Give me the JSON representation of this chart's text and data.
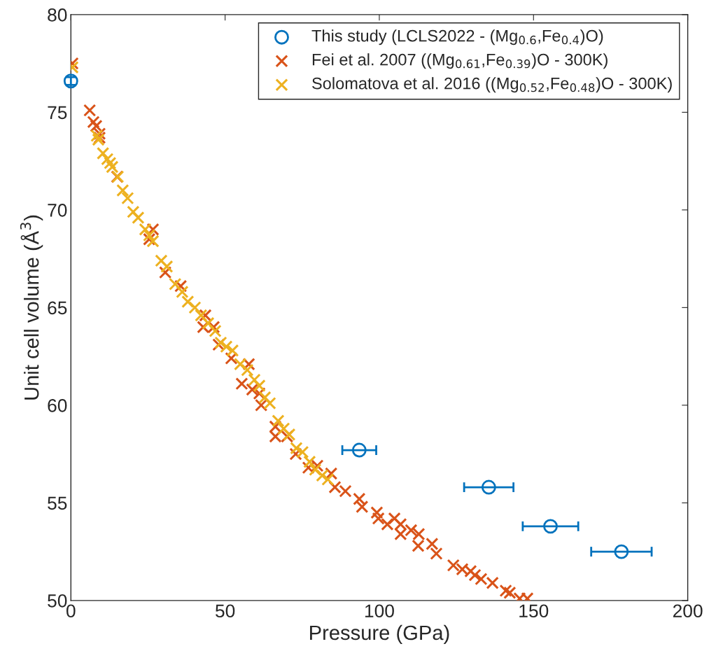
{
  "chart_data": {
    "type": "scatter",
    "xlabel": "Pressure (GPa)",
    "ylabel": "Unit cell volume (Å$^{3}$)",
    "xlim": [
      0,
      200
    ],
    "ylim": [
      50,
      80
    ],
    "xticks": [
      0,
      50,
      100,
      150,
      200
    ],
    "yticks": [
      50,
      55,
      60,
      65,
      70,
      75,
      80
    ],
    "grid": false,
    "legend": "top right",
    "series": [
      {
        "name": "This study (LCLS2022 - (Mg$_{0.6}$,Fe$_{0.4}$)O)",
        "color": "#0072bd",
        "marker": "circle",
        "x": [
          0,
          93.5,
          135.5,
          155.5,
          178.5
        ],
        "values": [
          76.6,
          57.7,
          55.8,
          53.8,
          52.5
        ],
        "xerrors": [
          null,
          5.5,
          8,
          9,
          9.8
        ],
        "errors": [
          0.2,
          null,
          null,
          null,
          null
        ]
      },
      {
        "name": "Fei et al. 2007 ((Mg$_{0.61}$,Fe$_{0.39}$)O - 300K)",
        "color": "#d95319",
        "marker": "cross",
        "x": [
          0.5,
          6.1,
          7.3,
          8.2,
          9.3,
          9.3,
          15.0,
          26.6,
          25.4,
          30.6,
          35.6,
          43.6,
          42.9,
          46.3,
          47.9,
          52.0,
          57.7,
          55.4,
          58.8,
          61.1,
          61.7,
          66.3,
          66.3,
          70.1,
          72.9,
          77.0,
          79.9,
          84.4,
          85.6,
          89.0,
          93.5,
          94.4,
          99.2,
          99.7,
          102.6,
          104.9,
          106.9,
          106.9,
          110.3,
          112.8,
          112.6,
          117.1,
          118.5,
          124.0,
          126.9,
          129.6,
          131.0,
          133.0,
          136.7,
          141.0,
          142.3,
          145.5,
          148.0
        ],
        "values": [
          77.5,
          75.1,
          74.5,
          74.3,
          73.9,
          73.7,
          71.7,
          69.0,
          68.5,
          66.8,
          66.1,
          64.6,
          64.0,
          64.0,
          63.1,
          62.4,
          62.1,
          61.1,
          60.8,
          60.6,
          60.0,
          58.9,
          58.4,
          58.4,
          57.5,
          56.8,
          56.9,
          56.5,
          55.8,
          55.6,
          55.2,
          54.8,
          54.5,
          54.2,
          53.9,
          54.2,
          53.9,
          53.4,
          53.6,
          53.4,
          52.8,
          52.9,
          52.4,
          51.8,
          51.6,
          51.5,
          51.3,
          51.1,
          50.9,
          50.5,
          50.4,
          50.1,
          50.1
        ]
      },
      {
        "name": "Solomatova et al. 2016 ((Mg$_{0.52}$,Fe$_{0.48}$)O - 300K)",
        "color": "#edb120",
        "marker": "cross",
        "x": [
          0.5,
          8.4,
          8.9,
          10.4,
          11.8,
          12.7,
          13.4,
          15.2,
          16.8,
          18.4,
          20.2,
          21.8,
          24.1,
          25.4,
          26.6,
          29.3,
          31.1,
          33.8,
          36.1,
          37.9,
          40.2,
          42.2,
          44.5,
          46.8,
          48.6,
          50.4,
          52.4,
          54.9,
          57.2,
          59.5,
          61.1,
          62.9,
          64.5,
          67.2,
          69.0,
          70.8,
          73.1,
          75.1,
          77.4,
          79.2,
          81.5,
          83.3
        ],
        "values": [
          77.3,
          73.8,
          73.6,
          72.9,
          72.6,
          72.4,
          72.2,
          71.7,
          71.0,
          70.6,
          69.9,
          69.6,
          69.0,
          68.7,
          68.4,
          67.4,
          67.1,
          66.2,
          65.8,
          65.3,
          65.0,
          64.6,
          64.2,
          63.8,
          63.2,
          63.0,
          62.8,
          62.1,
          61.8,
          61.3,
          61.0,
          60.4,
          60.1,
          59.2,
          58.8,
          58.5,
          57.8,
          57.6,
          57.1,
          56.7,
          56.4,
          56.2
        ]
      }
    ]
  }
}
